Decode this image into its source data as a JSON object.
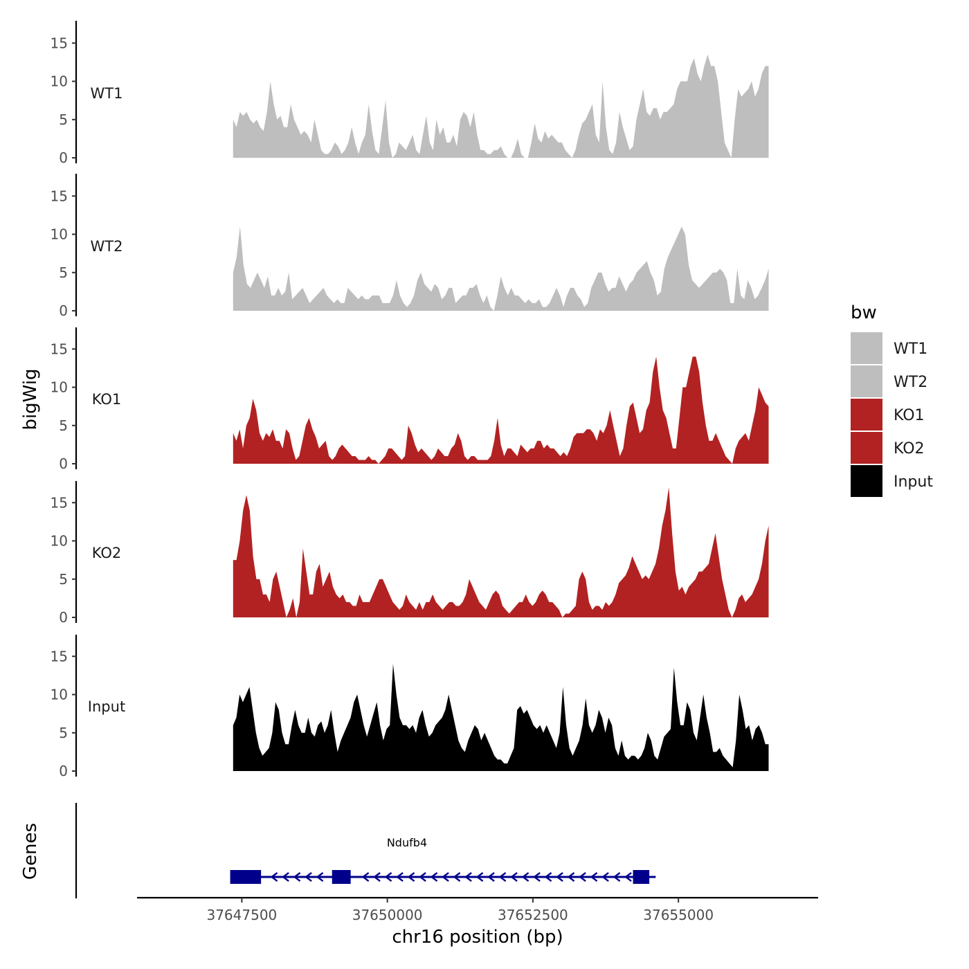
{
  "chart_data": {
    "type": "area",
    "ylabel": "bigWig",
    "genes_label": "Genes",
    "xlabel": "chr16 position (bp)",
    "xlim": [
      37645700,
      37657400
    ],
    "ylim": [
      0,
      18
    ],
    "region_start": 37647350,
    "region_end": 37656550,
    "yticks": [
      "0",
      "5",
      "10",
      "15"
    ],
    "xticks": [
      {
        "value": 37647500,
        "label": "37647500"
      },
      {
        "value": 37650000,
        "label": "37650000"
      },
      {
        "value": 37652500,
        "label": "37652500"
      },
      {
        "value": 37655000,
        "label": "37655000"
      }
    ],
    "legend": {
      "title": "bw",
      "items": [
        {
          "label": "WT1",
          "color": "#bebebe"
        },
        {
          "label": "WT2",
          "color": "#bebebe"
        },
        {
          "label": "KO1",
          "color": "#b22222"
        },
        {
          "label": "KO2",
          "color": "#b22222"
        },
        {
          "label": "Input",
          "color": "#000000"
        }
      ]
    },
    "series": [
      {
        "name": "WT1",
        "color": "#bebebe",
        "values": [
          5,
          4,
          6,
          5.5,
          6,
          5,
          4.5,
          5,
          4,
          3.5,
          6,
          10,
          7,
          5,
          5.5,
          4,
          4,
          7,
          5,
          4,
          3,
          3.5,
          3,
          2,
          5,
          3,
          1,
          0.5,
          0.5,
          1,
          2,
          1.5,
          0.5,
          1,
          2,
          4,
          2,
          0.5,
          2,
          3,
          7,
          3.5,
          1,
          0.5,
          4,
          7.5,
          2,
          0,
          0.5,
          2,
          1.5,
          1,
          2,
          3,
          1,
          0.5,
          3,
          5.5,
          2,
          1,
          5,
          3,
          4,
          2,
          2,
          3,
          1.5,
          5,
          6,
          5.5,
          4,
          6,
          3,
          1,
          1,
          0.5,
          0.5,
          1,
          1,
          1.5,
          0.5,
          0,
          0,
          1,
          2.5,
          0.5,
          0,
          0,
          2,
          4.5,
          2.5,
          2,
          3.5,
          2.5,
          3,
          2.5,
          2,
          2,
          1,
          0.5,
          0,
          1,
          3,
          4.5,
          5,
          6,
          7,
          3,
          2,
          10,
          4,
          1,
          0.5,
          2,
          6,
          4,
          2.5,
          1,
          1.5,
          5,
          7,
          9,
          6,
          5.5,
          6.5,
          6.5,
          5,
          6,
          6,
          6.5,
          7,
          9,
          10,
          10,
          10,
          12,
          13,
          11,
          10,
          12,
          13.5,
          12,
          12,
          10,
          6,
          2,
          1,
          0,
          5,
          9,
          8,
          8.5,
          9,
          10,
          8,
          9,
          11,
          12,
          12
        ]
      },
      {
        "name": "WT2",
        "color": "#bebebe",
        "values": [
          5,
          7,
          11,
          6,
          3.5,
          3,
          4,
          5,
          4,
          3,
          4.5,
          2,
          2,
          3,
          2,
          2.5,
          5,
          1.5,
          2,
          2.5,
          3,
          2,
          1,
          1.5,
          2,
          2.5,
          3,
          2,
          1.5,
          1,
          1.5,
          1,
          1,
          3,
          2.5,
          2,
          1.5,
          2,
          1.5,
          1.5,
          2,
          2,
          2,
          1,
          1,
          1,
          2,
          4,
          2,
          1,
          0.5,
          1,
          2,
          4,
          5,
          3.5,
          3,
          2.5,
          3.5,
          3,
          1.5,
          2,
          3,
          3,
          1,
          1.5,
          2,
          2,
          3,
          3,
          3.5,
          2,
          1,
          2,
          0.5,
          0,
          2,
          4.5,
          3,
          2,
          3,
          2,
          2,
          1.5,
          1,
          1.5,
          1,
          1,
          1.5,
          0.5,
          0.5,
          1,
          2,
          3,
          2,
          0.5,
          2,
          3,
          3,
          2,
          1.5,
          0.5,
          1,
          3,
          4,
          5,
          5,
          3.5,
          2.5,
          3,
          3,
          4.5,
          3.5,
          2.5,
          3.5,
          4,
          5,
          5.5,
          6,
          6.5,
          5,
          4,
          2,
          2.5,
          5.5,
          7,
          8,
          9,
          10,
          11,
          10,
          6,
          4,
          3.5,
          3,
          3.5,
          4,
          4.5,
          5,
          5,
          5.5,
          5,
          4,
          1,
          1,
          5.5,
          2,
          1.5,
          4,
          3,
          1.5,
          2,
          3,
          4,
          5.5
        ]
      },
      {
        "name": "KO1",
        "color": "#b22222",
        "values": [
          4,
          3,
          4.5,
          2,
          5,
          6,
          8.5,
          7,
          4,
          3,
          4,
          3.5,
          4.5,
          3,
          3,
          2,
          4.5,
          4,
          2,
          0.5,
          1,
          3,
          5,
          6,
          4.5,
          3.5,
          2,
          2.5,
          3,
          1,
          0.5,
          1,
          2,
          2.5,
          2,
          1.5,
          1,
          1,
          0.5,
          0.5,
          0.5,
          1,
          0.5,
          0.5,
          0,
          0.5,
          1,
          2,
          2,
          1.5,
          1,
          0.5,
          1,
          5,
          4,
          2.5,
          1.5,
          2,
          1.5,
          1,
          0.5,
          1,
          2,
          1.5,
          1,
          1,
          2,
          2.5,
          4,
          3,
          1,
          0.5,
          1,
          1,
          0.5,
          0.5,
          0.5,
          0.5,
          1,
          3,
          6,
          2.5,
          1,
          2,
          2,
          1.5,
          1,
          2.5,
          2,
          1.5,
          2,
          2,
          3,
          3,
          2,
          2.5,
          2,
          2,
          1.5,
          1,
          1.5,
          1,
          2,
          3.5,
          4,
          4,
          4,
          4.5,
          4.5,
          4,
          3,
          4.5,
          4,
          5,
          7,
          5,
          3,
          1,
          2,
          5,
          7.5,
          8,
          6,
          4,
          4.5,
          7,
          8,
          12,
          14,
          10,
          7,
          6,
          4,
          2,
          2,
          6,
          10,
          10,
          12,
          14,
          14,
          12,
          8,
          5,
          3,
          3,
          4,
          3,
          2,
          1,
          0.5,
          0,
          2,
          3,
          3.5,
          4,
          3,
          5,
          7,
          10,
          9,
          8,
          7.5
        ]
      },
      {
        "name": "KO2",
        "color": "#b22222",
        "values": [
          7.5,
          7.5,
          10,
          14,
          16,
          14,
          8,
          5,
          5,
          3,
          3,
          2,
          5,
          6,
          4,
          2,
          0,
          1,
          2.5,
          0,
          2,
          9,
          6,
          3,
          3,
          6,
          7,
          4,
          5,
          6,
          4,
          3,
          2.5,
          3,
          2,
          2,
          1.5,
          1.5,
          3,
          2,
          2,
          2,
          3,
          4,
          5,
          5,
          4,
          3,
          2,
          1.5,
          1,
          1.5,
          3,
          2,
          1.5,
          1,
          2,
          1,
          2,
          2,
          3,
          2,
          1.5,
          1,
          1.5,
          2,
          2,
          1.5,
          1.5,
          2,
          3,
          5,
          4,
          3,
          2,
          1.5,
          1,
          2,
          3,
          3.5,
          3,
          1.5,
          1,
          0.5,
          1,
          1.5,
          2,
          2,
          3,
          2,
          1.5,
          2,
          3,
          3.5,
          3,
          2,
          2,
          1.5,
          1,
          0,
          0.5,
          0.5,
          1,
          1.5,
          5,
          6,
          5,
          2,
          1,
          1.5,
          1.5,
          1,
          2,
          1.5,
          2,
          3,
          4.5,
          5,
          5.5,
          6.5,
          8,
          7,
          6,
          5,
          5.5,
          5,
          6,
          7,
          9,
          12,
          14,
          17,
          11,
          6,
          3.5,
          4,
          3,
          4,
          4.5,
          5,
          6,
          6,
          6.5,
          7,
          9,
          11,
          8,
          5,
          3,
          1,
          0,
          1,
          2.5,
          3,
          2,
          2.5,
          3,
          4,
          5,
          7,
          10,
          12
        ]
      },
      {
        "name": "Input",
        "color": "#000000",
        "values": [
          6,
          7,
          10,
          9,
          10,
          11,
          8,
          5,
          3,
          2,
          2.5,
          3,
          5,
          9,
          8,
          5,
          3.5,
          3.5,
          6,
          8,
          6,
          5,
          5,
          7,
          5,
          4.5,
          6,
          6.5,
          5,
          6,
          8,
          5,
          2.5,
          4,
          5,
          6,
          7,
          9,
          10,
          8,
          6,
          4.5,
          6,
          7.5,
          9,
          6,
          4,
          5.5,
          6,
          14,
          10,
          7,
          6,
          6,
          5.5,
          6,
          5,
          7,
          8,
          6,
          4.5,
          5,
          6,
          6.5,
          7,
          8,
          10,
          8,
          6,
          4,
          3,
          2.5,
          4,
          5,
          6,
          5.5,
          4,
          5,
          4,
          3,
          2,
          1.5,
          1.5,
          1,
          1,
          2,
          3,
          8,
          8.5,
          7.5,
          8,
          7,
          6,
          5.5,
          6,
          5,
          6,
          5,
          4,
          3,
          5,
          11,
          6,
          3,
          2,
          3,
          4,
          6,
          9.5,
          6,
          5,
          6,
          8,
          7,
          5,
          7,
          6,
          3,
          2,
          4,
          2,
          1.5,
          2,
          2,
          1.5,
          2,
          3,
          5,
          4,
          2,
          1.5,
          3,
          4.5,
          5,
          5.5,
          13.5,
          9,
          6,
          6,
          9,
          8,
          5,
          4,
          7,
          10,
          7,
          5,
          2.5,
          2.5,
          3,
          2,
          1.5,
          1,
          0.5,
          4,
          10,
          8,
          5.5,
          6,
          4,
          5.5,
          6,
          5,
          3.5,
          3.5
        ]
      }
    ],
    "gene": {
      "name": "Ndufb4",
      "strand": "-",
      "start": 37647300,
      "end": 37654610,
      "exons": [
        {
          "start": 37647300,
          "end": 37647830
        },
        {
          "start": 37649050,
          "end": 37649370
        },
        {
          "start": 37654220,
          "end": 37654500
        }
      ]
    }
  }
}
